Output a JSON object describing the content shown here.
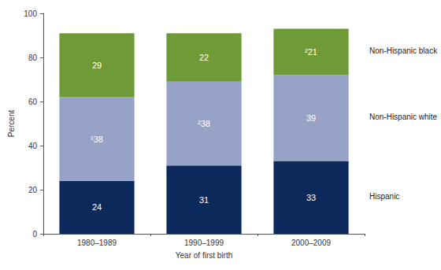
{
  "chart_data": {
    "type": "bar",
    "stacked": true,
    "data_labels": true,
    "grid": false,
    "x_label": "Year of first birth",
    "y_label": "Percent",
    "categories": [
      "1980–1989",
      "1990–1999",
      "2000–2009"
    ],
    "ylim": [
      0,
      100
    ],
    "yticks": [
      0,
      20,
      40,
      60,
      80,
      100
    ],
    "series": [
      {
        "name": "Hispanic",
        "color": "#0b2a5b",
        "values": [
          24,
          31,
          33
        ]
      },
      {
        "name": "Non-Hispanic white",
        "color": "#96a3c6",
        "values": [
          38,
          38,
          39
        ],
        "value_labels": [
          "¹38",
          "²38",
          "39"
        ]
      },
      {
        "name": "Non-Hispanic black",
        "color": "#6e9a37",
        "values": [
          29,
          22,
          21
        ],
        "value_labels": [
          "29",
          "22",
          "²21"
        ]
      }
    ]
  }
}
